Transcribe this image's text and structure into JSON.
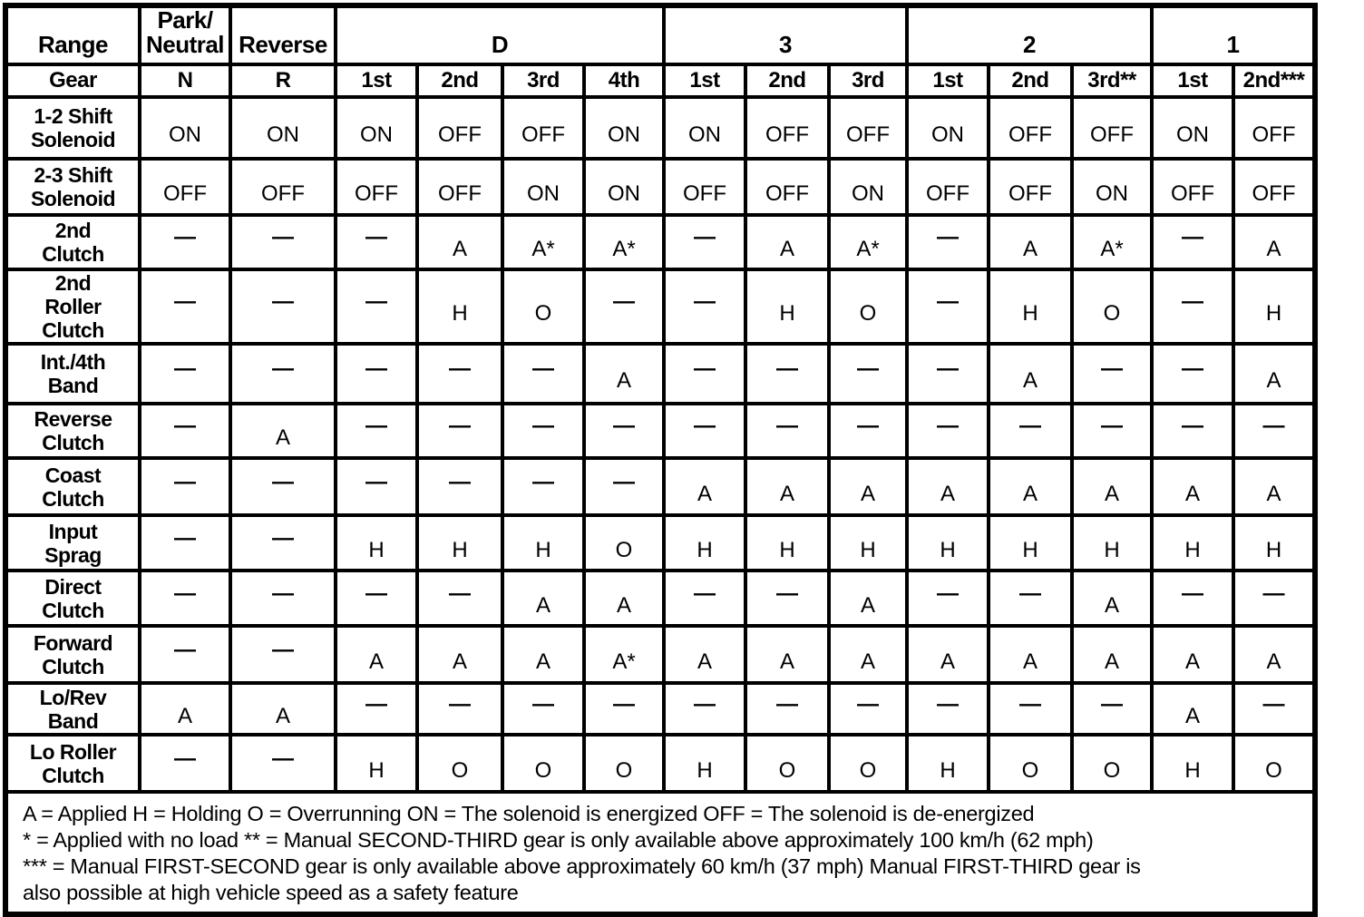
{
  "table": {
    "corner_label": "Range",
    "gear_label": "Gear",
    "groups": [
      {
        "label": "Park/\nNeutral",
        "gears": [
          "N"
        ]
      },
      {
        "label": "Reverse",
        "gears": [
          "R"
        ]
      },
      {
        "label": "D",
        "gears": [
          "1st",
          "2nd",
          "3rd",
          "4th"
        ]
      },
      {
        "label": "3",
        "gears": [
          "1st",
          "2nd",
          "3rd"
        ]
      },
      {
        "label": "2",
        "gears": [
          "1st",
          "2nd",
          "3rd**"
        ]
      },
      {
        "label": "1",
        "gears": [
          "1st",
          "2nd***"
        ]
      }
    ],
    "rows": [
      {
        "label": "1-2 Shift\nSolenoid",
        "values": [
          "ON",
          "ON",
          "ON",
          "OFF",
          "OFF",
          "ON",
          "ON",
          "OFF",
          "OFF",
          "ON",
          "OFF",
          "OFF",
          "ON",
          "OFF"
        ]
      },
      {
        "label": "2-3 Shift\nSolenoid",
        "values": [
          "OFF",
          "OFF",
          "OFF",
          "OFF",
          "ON",
          "ON",
          "OFF",
          "OFF",
          "ON",
          "OFF",
          "OFF",
          "ON",
          "OFF",
          "OFF"
        ]
      },
      {
        "label": "2nd\nClutch",
        "values": [
          "—",
          "—",
          "—",
          "A",
          "A*",
          "A*",
          "—",
          "A",
          "A*",
          "—",
          "A",
          "A*",
          "—",
          "A"
        ]
      },
      {
        "label": "2nd\nRoller\nClutch",
        "values": [
          "—",
          "—",
          "—",
          "H",
          "O",
          "—",
          "—",
          "H",
          "O",
          "—",
          "H",
          "O",
          "—",
          "H"
        ]
      },
      {
        "label": "Int./4th\nBand",
        "values": [
          "—",
          "—",
          "—",
          "—",
          "—",
          "A",
          "—",
          "—",
          "—",
          "—",
          "A",
          "—",
          "—",
          "A"
        ]
      },
      {
        "label": "Reverse\nClutch",
        "values": [
          "—",
          "A",
          "—",
          "—",
          "—",
          "—",
          "—",
          "—",
          "—",
          "—",
          "—",
          "—",
          "—",
          "—"
        ]
      },
      {
        "label": "Coast\nClutch",
        "values": [
          "—",
          "—",
          "—",
          "—",
          "—",
          "—",
          "A",
          "A",
          "A",
          "A",
          "A",
          "A",
          "A",
          "A"
        ]
      },
      {
        "label": "Input\nSprag",
        "values": [
          "—",
          "—",
          "H",
          "H",
          "H",
          "O",
          "H",
          "H",
          "H",
          "H",
          "H",
          "H",
          "H",
          "H"
        ]
      },
      {
        "label": "Direct\nClutch",
        "values": [
          "—",
          "—",
          "—",
          "—",
          "A",
          "A",
          "—",
          "—",
          "A",
          "—",
          "—",
          "A",
          "—",
          "—"
        ]
      },
      {
        "label": "Forward\nClutch",
        "values": [
          "—",
          "—",
          "A",
          "A",
          "A",
          "A*",
          "A",
          "A",
          "A",
          "A",
          "A",
          "A",
          "A",
          "A"
        ]
      },
      {
        "label": "Lo/Rev\nBand",
        "values": [
          "A",
          "A",
          "—",
          "—",
          "—",
          "—",
          "—",
          "—",
          "—",
          "—",
          "—",
          "—",
          "A",
          "—"
        ]
      },
      {
        "label": "Lo Roller\nClutch",
        "values": [
          "—",
          "—",
          "H",
          "O",
          "O",
          "O",
          "H",
          "O",
          "O",
          "H",
          "O",
          "O",
          "H",
          "O"
        ]
      }
    ],
    "notes": [
      "A = Applied H = Holding O = Overrunning ON = The solenoid is energized OFF = The solenoid is de-energized",
      "* = Applied with no load ** = Manual SECOND-THIRD gear is only available above approximately 100 km/h (62 mph)",
      "*** = Manual FIRST-SECOND gear is only available above approximately 60 km/h (37 mph) Manual FIRST-THIRD gear is",
      "also possible at high vehicle speed as a safety feature"
    ]
  }
}
